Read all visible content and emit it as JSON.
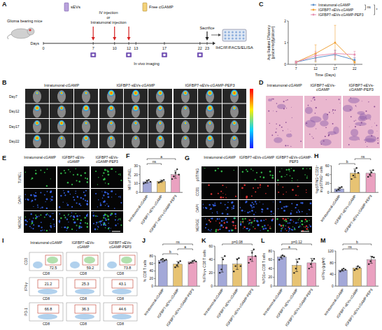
{
  "panel_letters": [
    "A",
    "B",
    "C",
    "D",
    "E",
    "F",
    "G",
    "H",
    "I",
    "J",
    "K",
    "L",
    "M"
  ],
  "schematic": {
    "mouse_label": "Glioma bearing mice",
    "agent": "sEVs",
    "routes": [
      "IV injection",
      "or",
      "Intratumoral injection"
    ],
    "free": "Free cGAMP",
    "days_label": "Days",
    "days": [
      0,
      7,
      10,
      12,
      13,
      17,
      22,
      23
    ],
    "injection_days": [
      7,
      10,
      12
    ],
    "imaging_days": [
      7,
      12,
      17,
      22
    ],
    "imaging": "In vivo imaging",
    "sacrifice": "Sacrifice",
    "assays": "IHC/IF/FACS/ELISA"
  },
  "imaging": {
    "groups": [
      "Intratumoral-cGAMP",
      "IGFBP7-sEVs-cGAMP",
      "IGFBP7-sEVs-cGAMP-PEP3"
    ],
    "rows": [
      "Day7",
      "Day12",
      "Day17",
      "Day22"
    ]
  },
  "he": {
    "groups": [
      "Intratumoral-cGAMP",
      "IGFBP7-sEVs-cGAMP",
      "IGFBP7-sEVs-cGAMP-PEP3"
    ]
  },
  "tunel": {
    "groups": [
      "Intratumoral-cGAMP",
      "IGFBP7-sEVs-cGAMP",
      "IGFBP7-sEVs-cGAMP-PEP3"
    ],
    "rows": [
      "TUNEL",
      "DAPI",
      "MERGE"
    ]
  },
  "if_staining": {
    "groups": [
      "Intratumoral-cGAMP",
      "IGFBP7-sEVs-cGAMP",
      "IGFBP7-sEVs-cGAMP-PEP3"
    ],
    "rows": [
      "pSTING",
      "CD31",
      "DAPI",
      "MERGE"
    ]
  },
  "flow": {
    "groups": [
      "Intratumoral-cGAMP",
      "IGFBP7-sEVs-cGAMP",
      "IGFBP7-sEVs-cGAMP-PEP3"
    ],
    "rows": [
      {
        "y_label": "CD3",
        "x_label": "CD8",
        "values": [
          72.5,
          59.2,
          73.8
        ]
      },
      {
        "y_label": "IFN-γ",
        "x_label": "CD8",
        "values": [
          21.2,
          25.3,
          43.1
        ]
      },
      {
        "y_label": "PD-1",
        "x_label": "CD8",
        "values": [
          66.8,
          36.3,
          44.6
        ]
      }
    ]
  },
  "chart_data": [
    {
      "type": "line",
      "x_label": "Time (Days)",
      "y_label": "Avg Radiant Efficiency [p/s/cm²/sr]/[µW/cm²]",
      "x": [
        7,
        12,
        17,
        22
      ],
      "xlim": [
        5,
        24
      ],
      "xticks": [
        7,
        12,
        17,
        22
      ],
      "ylim": [
        0,
        2
      ],
      "yticks": [
        0,
        1,
        2
      ],
      "legend": "top-right",
      "marker": "circle",
      "series": [
        {
          "name": "Intratumoral-cGAMP",
          "color": "#5b8fc9",
          "values": [
            0.1,
            0.3,
            0.45,
            0.2
          ],
          "errors": [
            0.05,
            0.15,
            0.2,
            0.1
          ]
        },
        {
          "name": "IGFBP7-sEVs-cGAMP",
          "color": "#f0a33a",
          "values": [
            0.1,
            0.5,
            1.0,
            0.1
          ],
          "errors": [
            0.05,
            0.4,
            0.8,
            0.05
          ]
        },
        {
          "name": "IGFBP7-sEVs-cGAMP-PEP3",
          "color": "#e68fb0",
          "values": [
            0.1,
            0.4,
            0.5,
            0.45
          ],
          "errors": [
            0.05,
            0.2,
            0.15,
            0.15
          ]
        }
      ],
      "comparisons": [
        {
          "series": [
            0,
            1
          ],
          "label": "ns"
        },
        {
          "series": [
            0,
            2
          ],
          "label": "*"
        }
      ]
    },
    {
      "type": "bar",
      "y_label": "MFI of TUNEL",
      "categories": [
        "Intratumoral-cGAMP",
        "IGFBP7-sEVs-cGAMP",
        "IGFBP7-sEVs-cGAMP-PEP3"
      ],
      "values": [
        12,
        12.5,
        20
      ],
      "errors": [
        1.6,
        1.3,
        4.2
      ],
      "points": [
        [
          10,
          11,
          13,
          14,
          12
        ],
        [
          11,
          12,
          13,
          14
        ],
        [
          15,
          18,
          22,
          26,
          20
        ]
      ],
      "colors": [
        "#a3a8d8",
        "#e7c373",
        "#eaa1c0"
      ],
      "ylim": [
        0,
        30
      ],
      "yticks": [
        0,
        10,
        20,
        30
      ],
      "comparisons": [
        {
          "groups": [
            0,
            1
          ],
          "label": "ns"
        },
        {
          "groups": [
            0,
            2
          ],
          "label": "a"
        }
      ]
    },
    {
      "type": "bar",
      "y_label": "%pSTING⁺CD31⁺ in pSTING⁺ cells",
      "categories": [
        "Intratumoral-cGAMP",
        "IGFBP7-sEVs-cGAMP",
        "IGFBP7-sEVs-cGAMP-PEP3"
      ],
      "values": [
        8,
        43,
        43
      ],
      "errors": [
        3.5,
        9.5,
        6.5
      ],
      "points": [
        [
          4,
          7,
          10,
          12
        ],
        [
          30,
          38,
          48,
          55,
          44
        ],
        [
          35,
          40,
          45,
          50
        ]
      ],
      "colors": [
        "#a3a8d8",
        "#e7c373",
        "#eaa1c0"
      ],
      "ylim": [
        0,
        60
      ],
      "yticks": [
        0,
        20,
        40,
        60
      ],
      "comparisons": [
        {
          "groups": [
            0,
            1
          ],
          "label": "b"
        },
        {
          "groups": [
            1,
            2
          ],
          "label": "ns"
        }
      ]
    },
    {
      "type": "bar",
      "y_label": "% CD8 T cells",
      "categories": [
        "Intratumoral-cGAMP",
        "IGFBP7-sEVs-cGAMP",
        "IGFBP7-sEVs-cGAMP-PEP3"
      ],
      "values": [
        68,
        58,
        64
      ],
      "errors": [
        4,
        7,
        3
      ],
      "points": [
        [
          62,
          70,
          72,
          68,
          70
        ],
        [
          50,
          55,
          62,
          66
        ],
        [
          60,
          62,
          66,
          68,
          65
        ]
      ],
      "colors": [
        "#a3a8d8",
        "#e7c373",
        "#eaa1c0"
      ],
      "ylim": [
        0,
        80
      ],
      "yticks": [
        0,
        20,
        40,
        60,
        80
      ],
      "comparisons": [
        {
          "groups": [
            0,
            1
          ],
          "label": "b"
        },
        {
          "groups": [
            1,
            2
          ],
          "label": "a"
        },
        {
          "groups": [
            0,
            2
          ],
          "label": "ns"
        }
      ]
    },
    {
      "type": "bar",
      "y_label": "%IFN-γ+ CD8 T cells",
      "categories": [
        "Intratumoral-cGAMP",
        "IGFBP7-sEVs-cGAMP",
        "IGFBP7-sEVs-cGAMP-PEP3"
      ],
      "values": [
        32,
        33,
        45
      ],
      "errors": [
        11,
        8,
        8
      ],
      "points": [
        [
          20,
          25,
          40,
          45
        ],
        [
          22,
          30,
          40,
          42,
          30
        ],
        [
          35,
          40,
          50,
          55,
          45
        ]
      ],
      "colors": [
        "#a3a8d8",
        "#e7c373",
        "#eaa1c0"
      ],
      "ylim": [
        0,
        60
      ],
      "yticks": [
        0,
        20,
        40,
        60
      ],
      "comparisons": [
        {
          "groups": [
            0,
            2
          ],
          "label": "p=0.08"
        }
      ]
    },
    {
      "type": "bar",
      "y_label": "%PD1+ CD8 T cells",
      "categories": [
        "Intratumoral-cGAMP",
        "IGFBP7-sEVs-cGAMP",
        "IGFBP7-sEVs-cGAMP-PEP3"
      ],
      "values": [
        66,
        47,
        53
      ],
      "errors": [
        4,
        14,
        10
      ],
      "points": [
        [
          60,
          66,
          70,
          68
        ],
        [
          30,
          40,
          55,
          62
        ],
        [
          40,
          50,
          58,
          62
        ]
      ],
      "colors": [
        "#a3a8d8",
        "#e7c373",
        "#eaa1c0"
      ],
      "ylim": [
        0,
        80
      ],
      "yticks": [
        0,
        20,
        40,
        60,
        80
      ],
      "comparisons": [
        {
          "groups": [
            0,
            1
          ],
          "label": "a"
        },
        {
          "groups": [
            0,
            2
          ],
          "label": "p=0.12"
        }
      ]
    },
    {
      "type": "bar",
      "y_label": "sIFN-γ (pg/ml)",
      "categories": [
        "Intratumoral-cGAMP",
        "IGFBP7-sEVs-cGAMP",
        "IGFBP7-sEVs-cGAMP-PEP3"
      ],
      "values": [
        55,
        62,
        90
      ],
      "errors": [
        4,
        5,
        12
      ],
      "points": [
        [
          50,
          55,
          60,
          56
        ],
        [
          55,
          60,
          68,
          64
        ],
        [
          75,
          85,
          100,
          98
        ]
      ],
      "colors": [
        "#a3a8d8",
        "#e7c373",
        "#eaa1c0"
      ],
      "ylim": [
        0,
        120
      ],
      "yticks": [
        0,
        40,
        80,
        120
      ],
      "comparisons": [
        {
          "groups": [
            0,
            1
          ],
          "label": "ns"
        },
        {
          "groups": [
            0,
            2
          ],
          "label": "b"
        }
      ]
    }
  ]
}
